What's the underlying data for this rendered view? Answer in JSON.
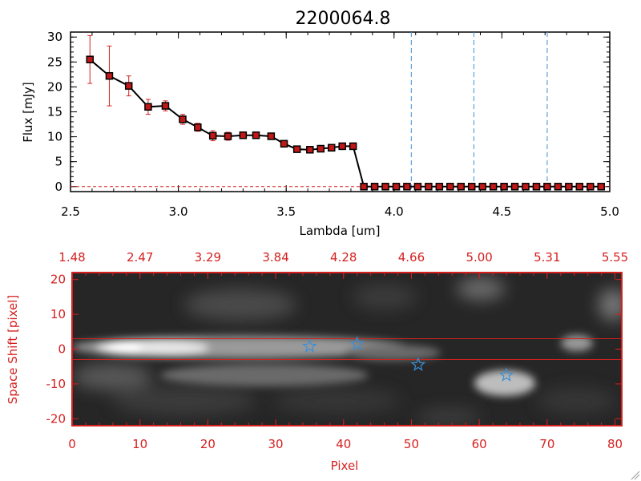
{
  "chart_data": [
    {
      "type": "line",
      "title": "2200064.8",
      "xlabel": "Lambda [um]",
      "ylabel": "Flux [mJy]",
      "xlim": [
        2.5,
        5.0
      ],
      "ylim": [
        -1,
        31
      ],
      "xticks": [
        "2.5",
        "3.0",
        "3.5",
        "4.0",
        "4.5",
        "5.0"
      ],
      "yticks": [
        "0",
        "5",
        "10",
        "15",
        "20",
        "25",
        "30"
      ],
      "xtick_values": [
        2.5,
        3.0,
        3.5,
        4.0,
        4.5,
        5.0
      ],
      "ytick_values": [
        0,
        5,
        10,
        15,
        20,
        25,
        30
      ],
      "vlines": [
        4.08,
        4.37,
        4.71
      ],
      "colors": {
        "line": "#000000",
        "marker": "#c01818",
        "error": "#d62020",
        "vline": "#3a8fd6"
      },
      "series": [
        {
          "name": "flux",
          "x": [
            2.59,
            2.68,
            2.77,
            2.86,
            2.94,
            3.02,
            3.09,
            3.16,
            3.23,
            3.3,
            3.36,
            3.43,
            3.49,
            3.55,
            3.61,
            3.66,
            3.71,
            3.76,
            3.81,
            3.86,
            3.91,
            3.96,
            4.01,
            4.06,
            4.11,
            4.16,
            4.21,
            4.26,
            4.31,
            4.36,
            4.41,
            4.46,
            4.51,
            4.56,
            4.61,
            4.66,
            4.71,
            4.76,
            4.81,
            4.86,
            4.91,
            4.96
          ],
          "y": [
            25.5,
            22.2,
            20.2,
            16.0,
            16.2,
            13.5,
            11.9,
            10.2,
            10.1,
            10.3,
            10.3,
            10.1,
            8.6,
            7.5,
            7.4,
            7.6,
            7.8,
            8.1,
            8.1,
            0,
            0,
            0,
            0,
            0,
            0,
            0,
            0,
            0,
            0,
            0,
            0,
            0,
            0,
            0,
            0,
            0,
            0,
            0,
            0,
            0,
            0,
            0
          ],
          "err": [
            4.8,
            6.0,
            2.0,
            1.5,
            1.0,
            1.0,
            0.8,
            1.0,
            0.8,
            0.5,
            0.5,
            0.5,
            0.4,
            0.4,
            0.4,
            0.4,
            0.4,
            0.4,
            0.4,
            0,
            0,
            0,
            0,
            0,
            0,
            0,
            0,
            0,
            0,
            0,
            0,
            0,
            0,
            0,
            0,
            0,
            0,
            0,
            0,
            0,
            0,
            0
          ]
        }
      ]
    },
    {
      "type": "heatmap",
      "xlabel": "Pixel",
      "ylabel": "Space Shift [pixel]",
      "xlim": [
        0,
        81
      ],
      "ylim": [
        -22,
        22
      ],
      "xticks": [
        "0",
        "10",
        "20",
        "30",
        "40",
        "50",
        "60",
        "70",
        "80"
      ],
      "xtick_values": [
        0,
        10,
        20,
        30,
        40,
        50,
        60,
        70,
        80
      ],
      "yticks": [
        "-20",
        "-10",
        "0",
        "10",
        "20"
      ],
      "ytick_values": [
        -20,
        -10,
        0,
        10,
        20
      ],
      "top_ticks": [
        "1.48",
        "2.47",
        "3.29",
        "3.84",
        "4.28",
        "4.66",
        "5.00",
        "5.31",
        "5.55"
      ],
      "hlines": [
        3,
        -3
      ],
      "stars": [
        {
          "x": 35.0,
          "y": 0.8
        },
        {
          "x": 42.0,
          "y": 1.5
        },
        {
          "x": 51.0,
          "y": -4.5
        },
        {
          "x": 64.0,
          "y": -7.5
        }
      ],
      "colors": {
        "frame": "#d62020",
        "star": "#3a8fd6"
      }
    }
  ]
}
